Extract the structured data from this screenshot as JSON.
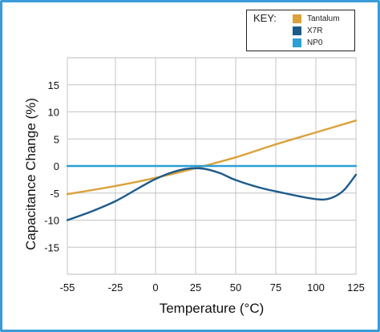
{
  "chart_data": {
    "type": "line",
    "xlabel": "Temperature (°C)",
    "ylabel": "Capacitance Change (%)",
    "xlim": [
      -55,
      125
    ],
    "ylim": [
      -20,
      20
    ],
    "xticks": [
      "-55",
      "-25",
      "0",
      "25",
      "50",
      "75",
      "100",
      "125"
    ],
    "xtick_values": [
      -55,
      -25,
      0,
      25,
      50,
      75,
      100,
      125
    ],
    "yticks": [
      "15",
      "10",
      "5",
      "0",
      "-5",
      "-10",
      "-15"
    ],
    "ytick_values": [
      15,
      10,
      5,
      0,
      -5,
      -10,
      -15
    ],
    "grid": true,
    "legend_title": "KEY:",
    "legend_position": "top-right",
    "series": [
      {
        "name": "Tantalum",
        "color": "#dba13a",
        "x": [
          -55,
          -25,
          0,
          25,
          50,
          75,
          100,
          125
        ],
        "y": [
          -5.2,
          -3.7,
          -2.2,
          -0.4,
          1.6,
          4.0,
          6.2,
          8.4
        ]
      },
      {
        "name": "X7R",
        "color": "#1c5a8a",
        "x": [
          -55,
          -40,
          -25,
          -10,
          0,
          10,
          20,
          30,
          40,
          50,
          65,
          80,
          95,
          105,
          112,
          118,
          125
        ],
        "y": [
          -10.0,
          -8.4,
          -6.5,
          -4.0,
          -2.4,
          -1.2,
          -0.5,
          -0.5,
          -1.3,
          -2.6,
          -4.0,
          -5.0,
          -5.9,
          -6.2,
          -5.6,
          -4.3,
          -1.6
        ]
      },
      {
        "name": "NP0",
        "color": "#2b9fd6",
        "x": [
          -55,
          125
        ],
        "y": [
          0,
          0
        ]
      }
    ]
  }
}
